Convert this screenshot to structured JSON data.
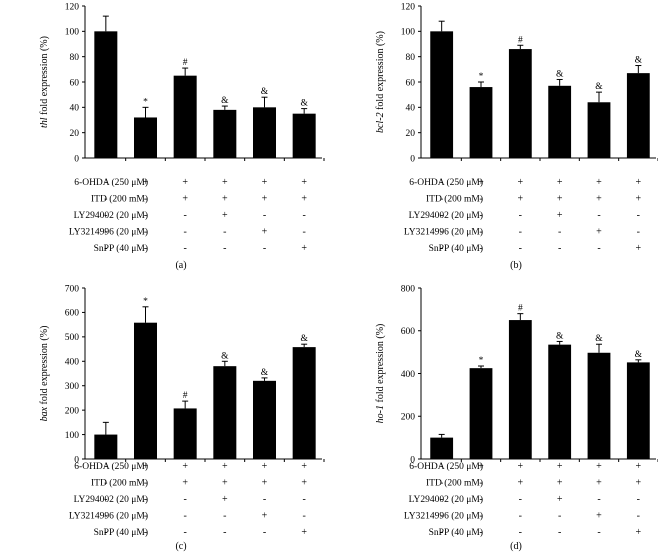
{
  "conditions": {
    "labels": [
      "6-OHDA (250 μM)",
      "ITD (200 mM)",
      "LY294002 (20 μM)",
      "LY3214996 (20 μM)",
      "SnPP (40 μM)"
    ],
    "signs": [
      [
        "-",
        "+",
        "+",
        "+",
        "+",
        "+"
      ],
      [
        "-",
        "-",
        "+",
        "+",
        "+",
        "+"
      ],
      [
        "-",
        "-",
        "-",
        "+",
        "-",
        "-"
      ],
      [
        "-",
        "-",
        "-",
        "-",
        "+",
        "-"
      ],
      [
        "-",
        "-",
        "-",
        "-",
        "-",
        "+"
      ]
    ]
  },
  "chart_data": [
    {
      "type": "bar",
      "panel": "(a)",
      "gene": "thl",
      "ylabel_suffix": " fold expression (%)",
      "ylim": [
        0,
        120
      ],
      "yticks": [
        0,
        20,
        40,
        60,
        80,
        100,
        120
      ],
      "values": [
        100,
        32,
        65,
        38,
        40,
        35
      ],
      "errors": [
        12,
        8,
        6,
        3,
        8,
        4
      ],
      "annotations": [
        "",
        "*",
        "#",
        "&",
        "&",
        "&"
      ]
    },
    {
      "type": "bar",
      "panel": "(b)",
      "gene": "bcl-2",
      "ylabel_suffix": " fold expression (%)",
      "ylim": [
        0,
        120
      ],
      "yticks": [
        0,
        20,
        40,
        60,
        80,
        100,
        120
      ],
      "values": [
        100,
        56,
        86,
        57,
        44,
        67
      ],
      "errors": [
        8,
        4,
        3,
        5,
        8,
        6
      ],
      "annotations": [
        "",
        "*",
        "#",
        "&",
        "&",
        "&"
      ]
    },
    {
      "type": "bar",
      "panel": "(c)",
      "gene": "bax",
      "ylabel_suffix": " fold expression (%)",
      "ylim": [
        0,
        700
      ],
      "yticks": [
        0,
        100,
        200,
        300,
        400,
        500,
        600,
        700
      ],
      "values": [
        100,
        558,
        207,
        380,
        320,
        458
      ],
      "errors": [
        50,
        65,
        30,
        20,
        12,
        12
      ],
      "annotations": [
        "",
        "*",
        "#",
        "&",
        "&",
        "&"
      ]
    },
    {
      "type": "bar",
      "panel": "(d)",
      "gene": "ho-1",
      "ylabel_suffix": " fold expression (%)",
      "ylim": [
        0,
        800
      ],
      "yticks": [
        0,
        200,
        400,
        600,
        800
      ],
      "values": [
        100,
        425,
        650,
        535,
        497,
        452
      ],
      "errors": [
        15,
        10,
        30,
        15,
        40,
        12
      ],
      "annotations": [
        "",
        "*",
        "#",
        "&",
        "&",
        "&"
      ]
    }
  ]
}
